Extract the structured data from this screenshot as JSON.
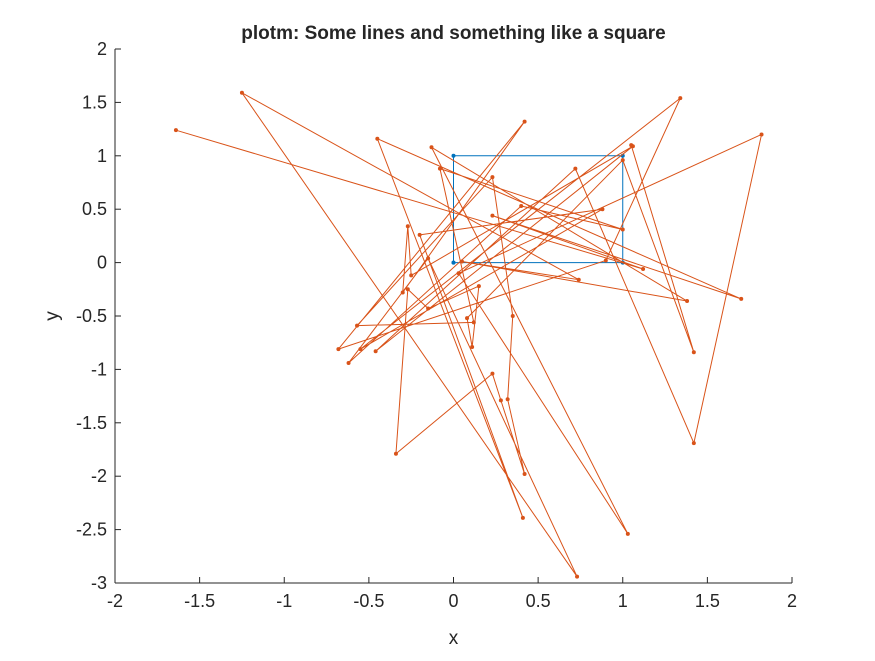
{
  "chart_data": {
    "type": "line",
    "title": "plotm: Some lines and something like a square",
    "xlabel": "x",
    "ylabel": "y",
    "xlim": [
      -2,
      2
    ],
    "ylim": [
      -3,
      2
    ],
    "xticks": [
      -2,
      -1.5,
      -1,
      -0.5,
      0,
      0.5,
      1,
      1.5,
      2
    ],
    "xtick_labels": [
      "-2",
      "-1.5",
      "-1",
      "-0.5",
      "0",
      "0.5",
      "1",
      "1.5",
      "2"
    ],
    "yticks": [
      -3,
      -2.5,
      -2,
      -1.5,
      -1,
      -0.5,
      0,
      0.5,
      1,
      1.5,
      2
    ],
    "ytick_labels": [
      "-3",
      "-2.5",
      "-2",
      "-1.5",
      "-1",
      "-0.5",
      "0",
      "0.5",
      "1",
      "1.5",
      "2"
    ],
    "grid": false,
    "series": [
      {
        "color": "#0072BD",
        "marker": "dot",
        "points": [
          [
            0,
            0
          ],
          [
            1,
            0
          ],
          [
            1,
            1
          ],
          [
            0,
            1
          ],
          [
            0,
            0
          ]
        ]
      },
      {
        "color": "#D95319",
        "marker": "dot",
        "points": [
          [
            -1.64,
            1.24
          ],
          [
            1.12,
            -0.06
          ],
          [
            0.23,
            0.44
          ],
          [
            1.7,
            -0.34
          ],
          [
            -0.45,
            1.16
          ],
          [
            0.41,
            -2.39
          ],
          [
            -0.2,
            0.26
          ],
          [
            0.88,
            0.5
          ],
          [
            -0.55,
            -0.81
          ],
          [
            1.34,
            1.54
          ],
          [
            0.9,
            0.02
          ],
          [
            -0.68,
            -0.81
          ],
          [
            0.42,
            1.32
          ],
          [
            -0.3,
            -0.28
          ],
          [
            -0.27,
            0.34
          ],
          [
            -0.25,
            -0.12
          ],
          [
            1.06,
            1.09
          ],
          [
            -0.46,
            -0.83
          ],
          [
            0.72,
            0.88
          ],
          [
            1.42,
            -1.69
          ],
          [
            1.82,
            1.2
          ],
          [
            0.03,
            -0.1
          ],
          [
            1.03,
            -2.54
          ],
          [
            -0.13,
            1.08
          ],
          [
            1.38,
            -0.36
          ],
          [
            0.05,
            0.01
          ],
          [
            0.74,
            -0.16
          ],
          [
            -1.25,
            1.59
          ],
          [
            0.73,
            -2.94
          ],
          [
            -0.15,
            0.04
          ],
          [
            -0.62,
            -0.94
          ],
          [
            0.4,
            0.53
          ],
          [
            1.0,
            0.31
          ],
          [
            -0.08,
            0.88
          ],
          [
            0.12,
            -0.56
          ],
          [
            -0.57,
            -0.59
          ],
          [
            0.23,
            0.8
          ],
          [
            0.35,
            -0.5
          ],
          [
            0.32,
            -1.28
          ],
          [
            0.42,
            -1.98
          ],
          [
            0.28,
            -1.29
          ],
          [
            0.23,
            -1.04
          ],
          [
            -0.34,
            -1.79
          ],
          [
            -0.27,
            -0.25
          ],
          [
            -0.15,
            -0.43
          ],
          [
            0.15,
            -0.22
          ],
          [
            0.11,
            -0.79
          ],
          [
            0.08,
            -0.52
          ],
          [
            1.0,
            0.96
          ],
          [
            1.42,
            -0.84
          ],
          [
            1.05,
            1.1
          ]
        ]
      }
    ]
  }
}
